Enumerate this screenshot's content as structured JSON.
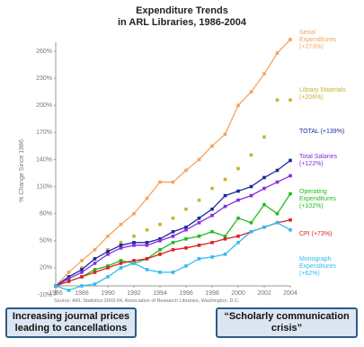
{
  "chart_data": {
    "type": "line",
    "title": "Expenditure Trends",
    "subtitle": "in ARL Libraries, 1986-2004",
    "y_label": "% Change Since 1986",
    "source": "Source: ARL Statistics 2003-04, Association of Research Libraries, Washington, D.C.",
    "x": [
      1986,
      1987,
      1988,
      1989,
      1990,
      1991,
      1992,
      1993,
      1994,
      1995,
      1996,
      1997,
      1998,
      1999,
      2000,
      2001,
      2002,
      2003,
      2004
    ],
    "xlim": [
      1986,
      2004
    ],
    "xticks": [
      1986,
      1988,
      1990,
      1992,
      1994,
      1996,
      1998,
      2000,
      2002,
      2004
    ],
    "ylim": [
      -10,
      270
    ],
    "yticks": [
      {
        "value": -10,
        "label": "-10%"
      },
      {
        "value": 20,
        "label": "20%"
      },
      {
        "value": 50,
        "label": "50%"
      },
      {
        "value": 80,
        "label": "80%"
      },
      {
        "value": 110,
        "label": "110%"
      },
      {
        "value": 140,
        "label": "140%"
      },
      {
        "value": 170,
        "label": "170%"
      },
      {
        "value": 200,
        "label": "200%"
      },
      {
        "value": 230,
        "label": "230%"
      },
      {
        "value": 260,
        "label": "260%"
      }
    ],
    "series": [
      {
        "name": "Serial Expenditures (+273%)",
        "color": "#f4a460",
        "values": [
          0,
          15,
          28,
          40,
          55,
          68,
          80,
          97,
          115,
          115,
          128,
          140,
          155,
          168,
          200,
          215,
          235,
          258,
          273
        ]
      },
      {
        "name": "Library Materials (+206%)",
        "color": "#c8b430",
        "values": [
          0,
          10,
          20,
          30,
          40,
          48,
          55,
          62,
          68,
          75,
          85,
          95,
          108,
          118,
          130,
          145,
          165,
          206,
          206
        ]
      },
      {
        "name": "TOTAL (+139%)",
        "color": "#1a2a9a",
        "values": [
          0,
          10,
          18,
          30,
          38,
          45,
          48,
          48,
          52,
          60,
          65,
          75,
          85,
          100,
          105,
          110,
          120,
          128,
          139
        ]
      },
      {
        "name": "Total Salaries (+122%)",
        "color": "#8a2be2",
        "values": [
          0,
          8,
          15,
          25,
          35,
          42,
          45,
          45,
          50,
          55,
          62,
          70,
          78,
          88,
          95,
          100,
          108,
          115,
          122
        ]
      },
      {
        "name": "Operating Expenditures (+102%)",
        "color": "#22bb22",
        "values": [
          0,
          5,
          10,
          18,
          22,
          28,
          25,
          30,
          40,
          48,
          52,
          55,
          60,
          55,
          75,
          70,
          90,
          80,
          102
        ]
      },
      {
        "name": "CPI (+73%)",
        "color": "#dd2222",
        "values": [
          0,
          5,
          10,
          15,
          20,
          25,
          28,
          30,
          35,
          40,
          42,
          45,
          48,
          52,
          55,
          60,
          65,
          70,
          73
        ]
      },
      {
        "name": "Monograph Expenditures (+62%)",
        "color": "#33bbee",
        "values": [
          0,
          -5,
          0,
          2,
          10,
          20,
          25,
          18,
          15,
          15,
          22,
          30,
          32,
          35,
          48,
          60,
          65,
          70,
          62
        ]
      }
    ]
  },
  "callouts": [
    "Increasing journal prices leading to cancellations",
    "“Scholarly communication crisis”"
  ]
}
